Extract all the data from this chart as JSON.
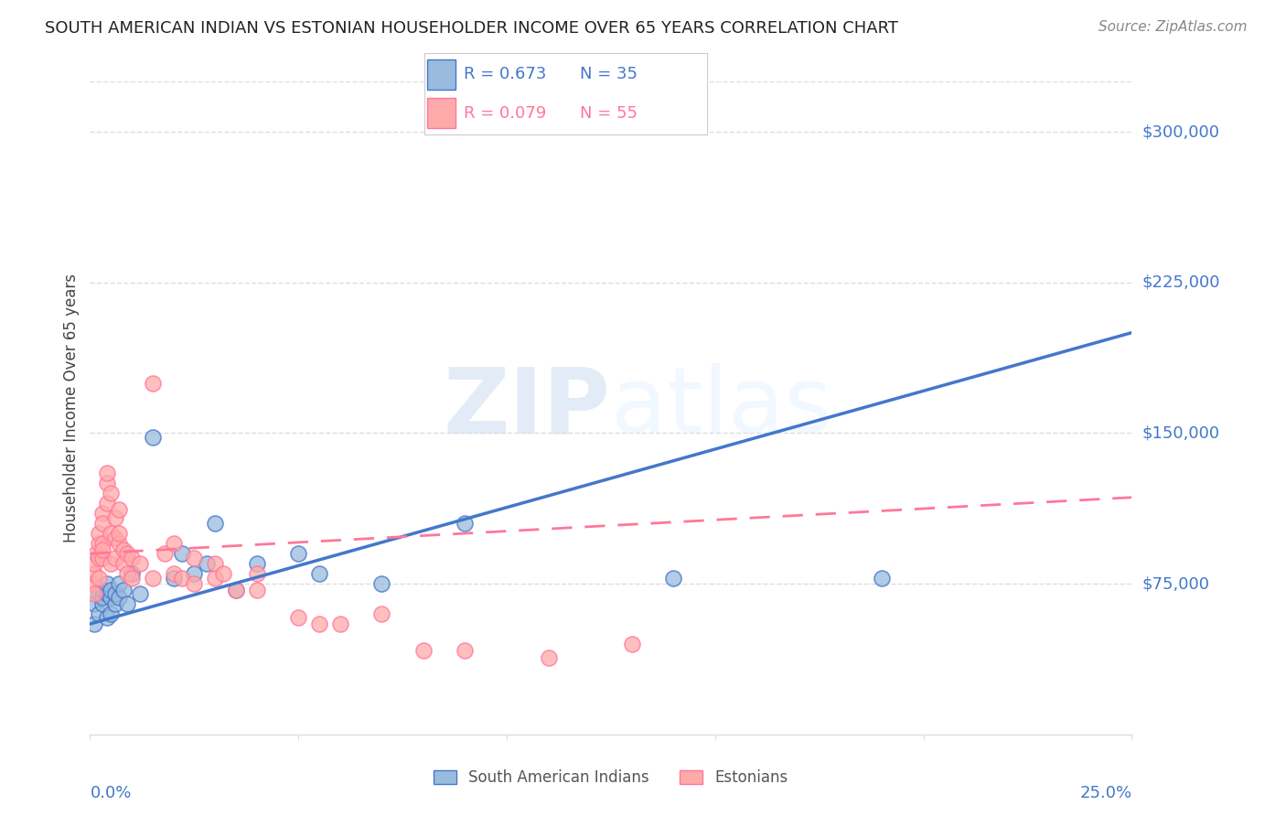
{
  "title": "SOUTH AMERICAN INDIAN VS ESTONIAN HOUSEHOLDER INCOME OVER 65 YEARS CORRELATION CHART",
  "source": "Source: ZipAtlas.com",
  "ylabel": "Householder Income Over 65 years",
  "ylim": [
    0,
    325000
  ],
  "xlim": [
    0.0,
    0.25
  ],
  "yticks": [
    75000,
    150000,
    225000,
    300000
  ],
  "ytick_labels": [
    "$75,000",
    "$150,000",
    "$225,000",
    "$300,000"
  ],
  "blue_color": "#99BBDD",
  "pink_color": "#FFAAAA",
  "blue_line_color": "#4477CC",
  "pink_line_color": "#FF7799",
  "axis_color": "#4477CC",
  "background_color": "#FFFFFF",
  "grid_color": "#DDDDDD",
  "legend_R_blue": "0.673",
  "legend_N_blue": "35",
  "legend_R_pink": "0.079",
  "legend_N_pink": "55",
  "watermark_zip": "ZIP",
  "watermark_atlas": "atlas",
  "blue_scatter_x": [
    0.001,
    0.001,
    0.002,
    0.002,
    0.003,
    0.003,
    0.003,
    0.004,
    0.004,
    0.004,
    0.005,
    0.005,
    0.005,
    0.006,
    0.006,
    0.007,
    0.007,
    0.008,
    0.009,
    0.01,
    0.012,
    0.015,
    0.02,
    0.022,
    0.025,
    0.028,
    0.03,
    0.035,
    0.04,
    0.05,
    0.055,
    0.07,
    0.09,
    0.14,
    0.19
  ],
  "blue_scatter_y": [
    55000,
    65000,
    60000,
    70000,
    65000,
    68000,
    72000,
    58000,
    70000,
    75000,
    60000,
    68000,
    72000,
    65000,
    70000,
    68000,
    75000,
    72000,
    65000,
    80000,
    70000,
    148000,
    78000,
    90000,
    80000,
    85000,
    105000,
    72000,
    85000,
    90000,
    80000,
    75000,
    105000,
    78000,
    78000
  ],
  "pink_scatter_x": [
    0.0005,
    0.001,
    0.001,
    0.001,
    0.0015,
    0.002,
    0.002,
    0.002,
    0.002,
    0.003,
    0.003,
    0.003,
    0.003,
    0.003,
    0.004,
    0.004,
    0.004,
    0.005,
    0.005,
    0.005,
    0.006,
    0.006,
    0.006,
    0.007,
    0.007,
    0.007,
    0.008,
    0.008,
    0.009,
    0.009,
    0.01,
    0.01,
    0.012,
    0.015,
    0.015,
    0.018,
    0.02,
    0.02,
    0.022,
    0.025,
    0.025,
    0.03,
    0.03,
    0.032,
    0.035,
    0.04,
    0.04,
    0.05,
    0.055,
    0.06,
    0.07,
    0.08,
    0.09,
    0.11,
    0.13
  ],
  "pink_scatter_y": [
    75000,
    80000,
    85000,
    70000,
    90000,
    95000,
    88000,
    100000,
    78000,
    110000,
    105000,
    95000,
    88000,
    92000,
    125000,
    130000,
    115000,
    120000,
    100000,
    85000,
    108000,
    98000,
    88000,
    112000,
    95000,
    100000,
    92000,
    85000,
    80000,
    90000,
    78000,
    88000,
    85000,
    78000,
    175000,
    90000,
    80000,
    95000,
    78000,
    88000,
    75000,
    85000,
    78000,
    80000,
    72000,
    72000,
    80000,
    58000,
    55000,
    55000,
    60000,
    42000,
    42000,
    38000,
    45000
  ]
}
